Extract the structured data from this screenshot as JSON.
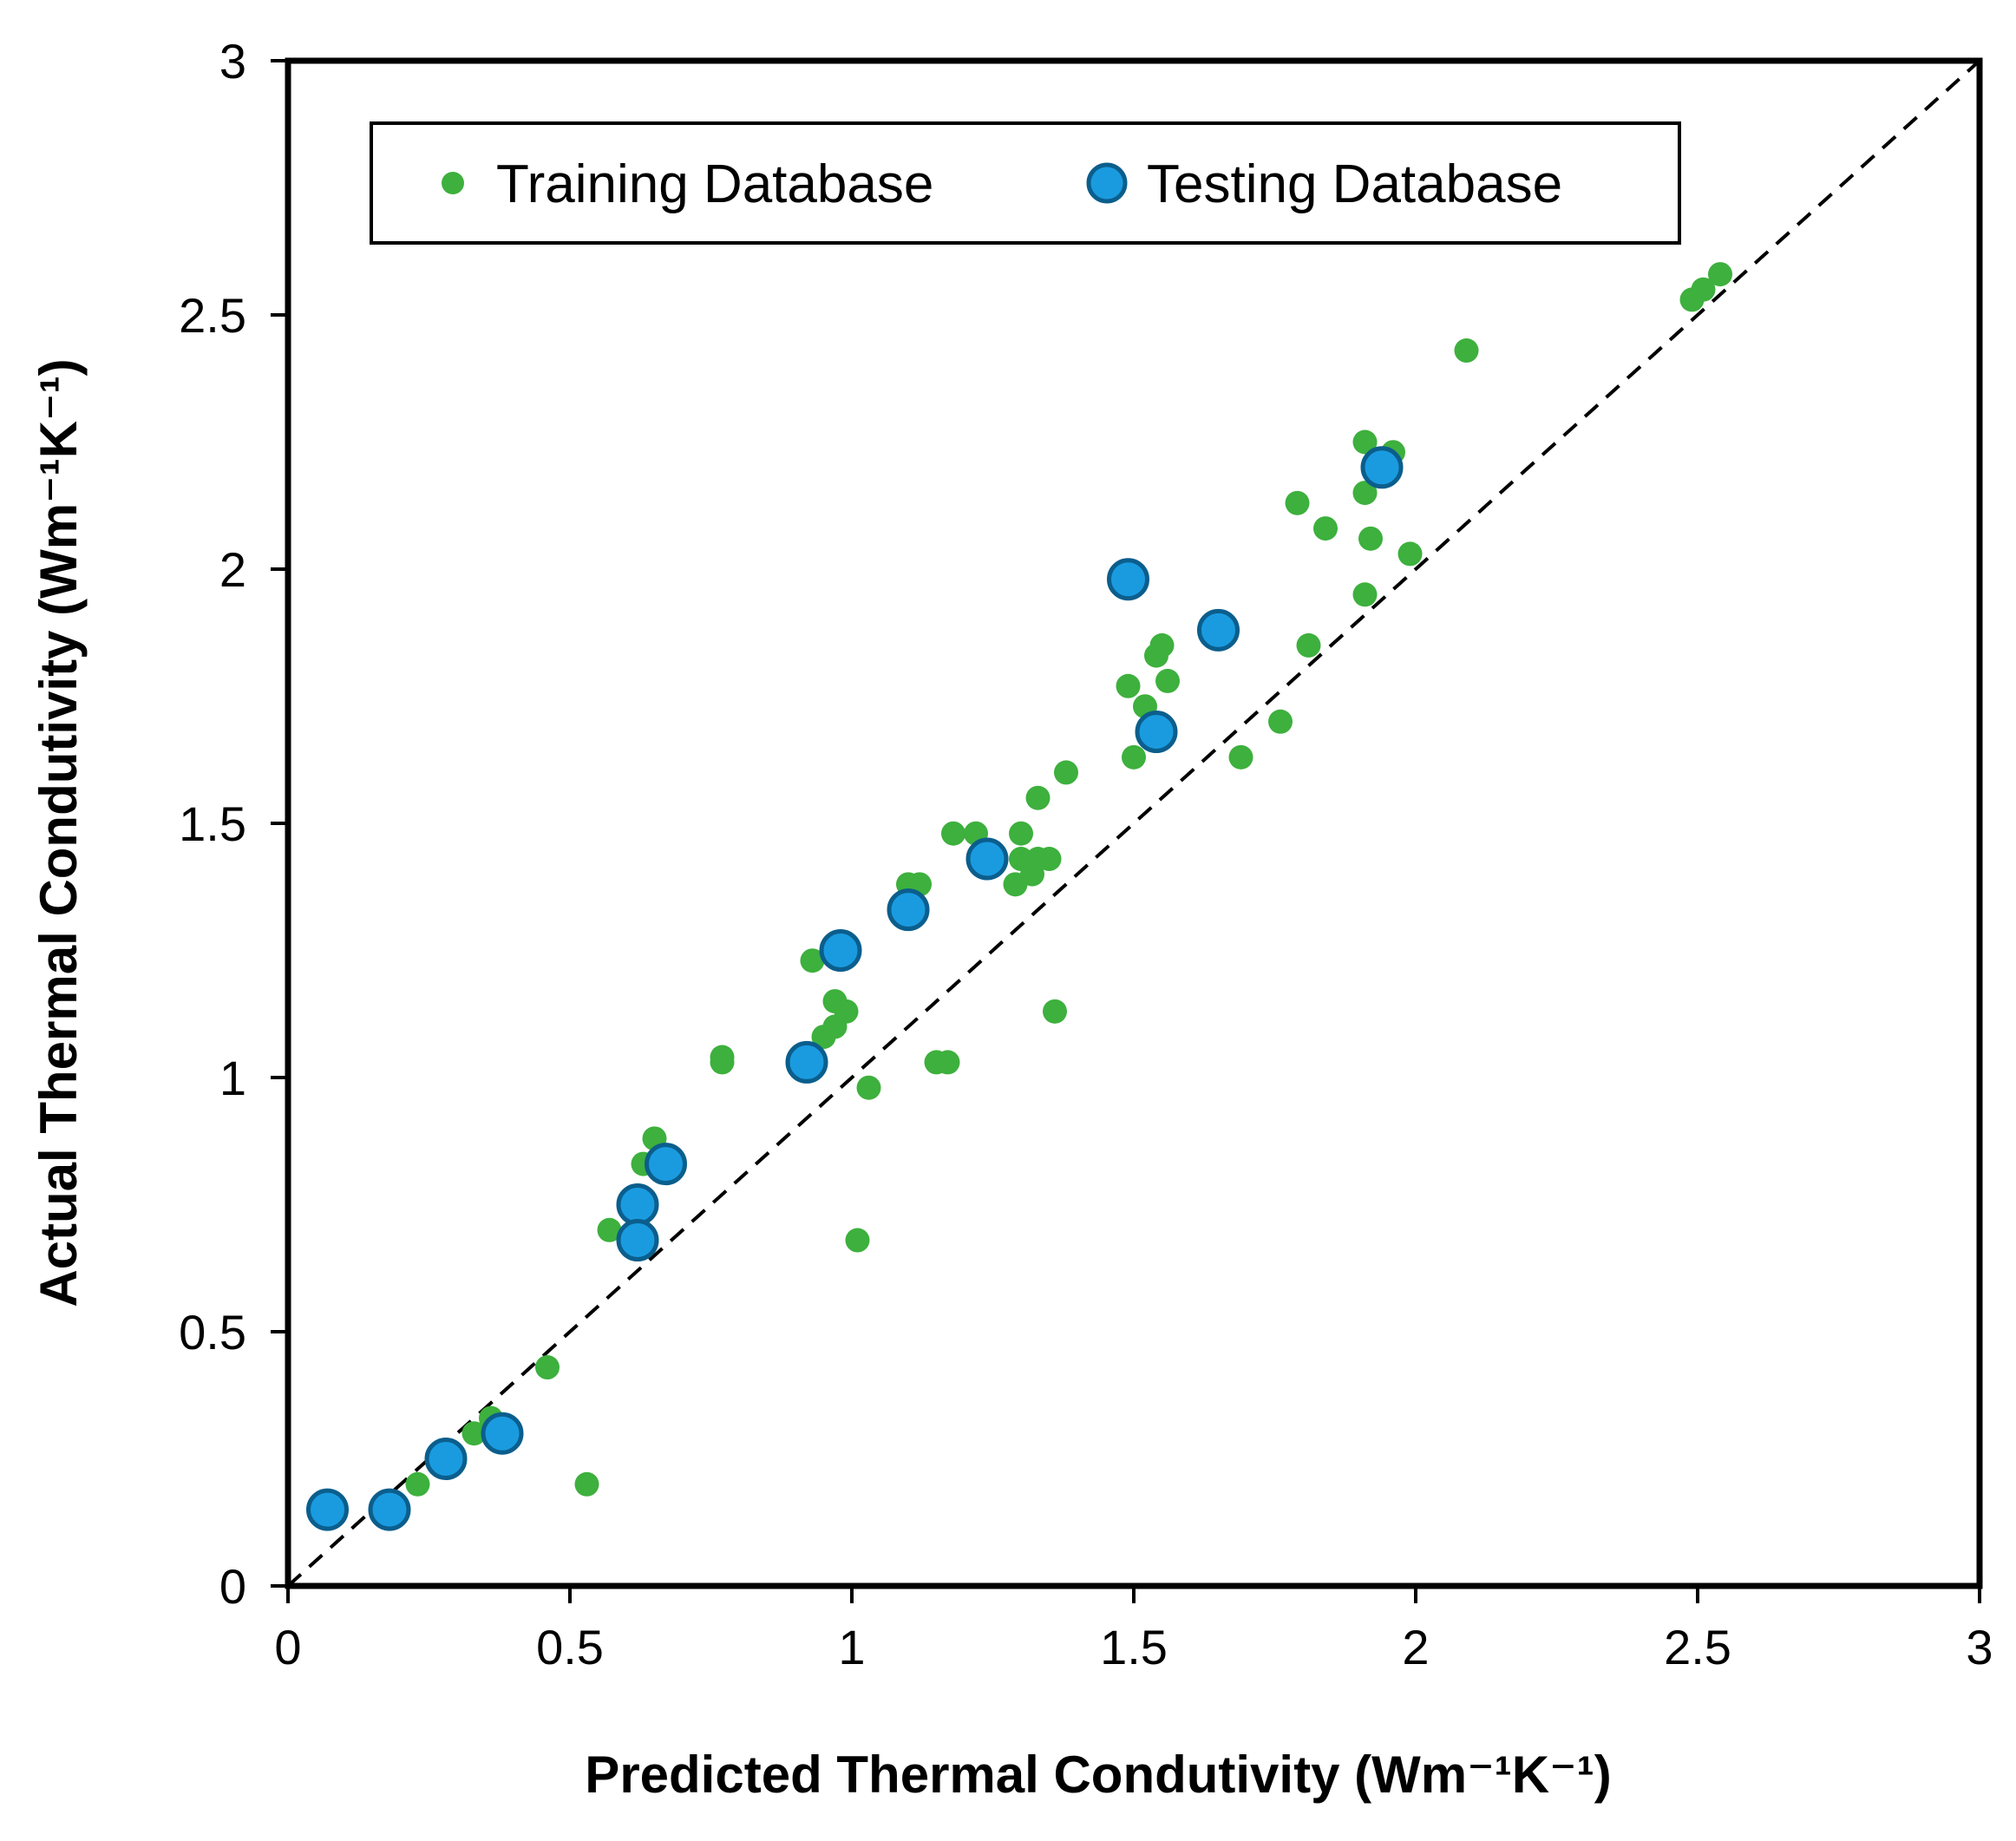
{
  "chart_data": {
    "type": "scatter",
    "title": "",
    "xlabel": "Predicted Thermal Condutivity (Wm⁻¹K⁻¹)",
    "ylabel": "Actual Thermal Condutivity (Wm⁻¹K⁻¹)",
    "xlim": [
      0,
      3
    ],
    "ylim": [
      0,
      3
    ],
    "xticks": [
      "0",
      "0.5",
      "1",
      "1.5",
      "2",
      "2.5",
      "3"
    ],
    "yticks": [
      "0",
      "0.5",
      "1",
      "1.5",
      "2",
      "2.5",
      "3"
    ],
    "grid": false,
    "legend_position": "top",
    "reference_line": {
      "name": "y = x",
      "style": "dashed",
      "color": "#000000"
    },
    "series": [
      {
        "name": "Training Database",
        "color": "#3db03d",
        "marker": "small-circle",
        "points": [
          [
            0.23,
            0.2
          ],
          [
            0.33,
            0.3
          ],
          [
            0.36,
            0.33
          ],
          [
            0.46,
            0.43
          ],
          [
            0.53,
            0.2
          ],
          [
            0.57,
            0.7
          ],
          [
            0.63,
            0.83
          ],
          [
            0.65,
            0.88
          ],
          [
            0.77,
            1.04
          ],
          [
            0.77,
            1.03
          ],
          [
            0.93,
            1.23
          ],
          [
            0.95,
            1.08
          ],
          [
            0.97,
            1.1
          ],
          [
            0.97,
            1.15
          ],
          [
            0.99,
            1.13
          ],
          [
            1.01,
            0.68
          ],
          [
            1.03,
            0.98
          ],
          [
            1.1,
            1.38
          ],
          [
            1.12,
            1.38
          ],
          [
            1.15,
            1.03
          ],
          [
            1.17,
            1.03
          ],
          [
            1.18,
            1.48
          ],
          [
            1.22,
            1.48
          ],
          [
            1.29,
            1.38
          ],
          [
            1.3,
            1.48
          ],
          [
            1.3,
            1.43
          ],
          [
            1.32,
            1.4
          ],
          [
            1.33,
            1.43
          ],
          [
            1.33,
            1.55
          ],
          [
            1.35,
            1.43
          ],
          [
            1.36,
            1.13
          ],
          [
            1.38,
            1.6
          ],
          [
            1.49,
            1.77
          ],
          [
            1.5,
            1.63
          ],
          [
            1.52,
            1.73
          ],
          [
            1.54,
            1.83
          ],
          [
            1.55,
            1.85
          ],
          [
            1.56,
            1.78
          ],
          [
            1.69,
            1.63
          ],
          [
            1.76,
            1.7
          ],
          [
            1.79,
            2.13
          ],
          [
            1.81,
            1.85
          ],
          [
            1.84,
            2.08
          ],
          [
            1.91,
            2.25
          ],
          [
            1.91,
            2.15
          ],
          [
            1.91,
            1.95
          ],
          [
            1.92,
            2.06
          ],
          [
            1.96,
            2.23
          ],
          [
            1.99,
            2.03
          ],
          [
            2.09,
            2.43
          ],
          [
            2.49,
            2.53
          ],
          [
            2.51,
            2.55
          ],
          [
            2.54,
            2.58
          ]
        ]
      },
      {
        "name": "Testing Database",
        "color": "#1a9be0",
        "marker": "large-circle",
        "points": [
          [
            0.07,
            0.15
          ],
          [
            0.18,
            0.15
          ],
          [
            0.28,
            0.25
          ],
          [
            0.38,
            0.3
          ],
          [
            0.62,
            0.75
          ],
          [
            0.62,
            0.68
          ],
          [
            0.67,
            0.83
          ],
          [
            0.92,
            1.03
          ],
          [
            0.98,
            1.25
          ],
          [
            1.1,
            1.33
          ],
          [
            1.24,
            1.43
          ],
          [
            1.49,
            1.98
          ],
          [
            1.54,
            1.68
          ],
          [
            1.65,
            1.88
          ],
          [
            1.94,
            2.2
          ]
        ]
      }
    ]
  }
}
